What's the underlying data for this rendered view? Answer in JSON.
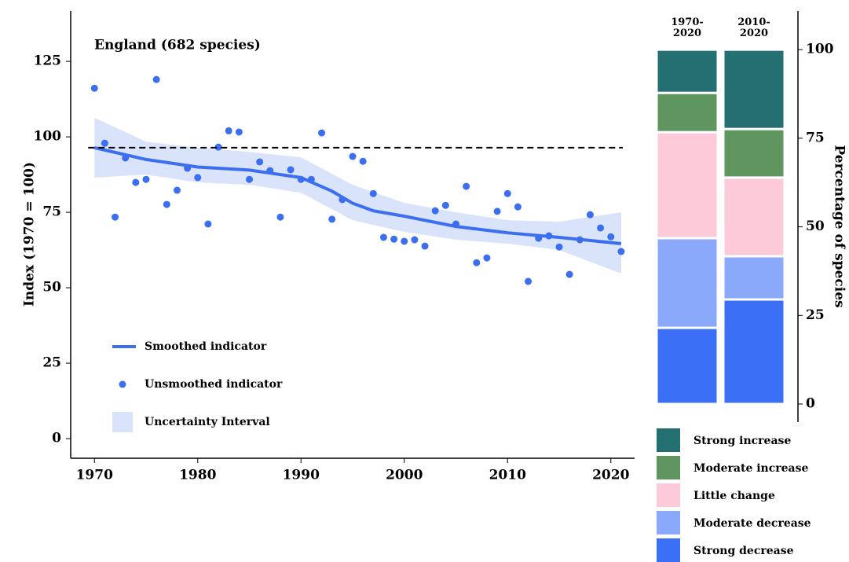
{
  "chart_data": [
    {
      "type": "line",
      "title": "England (682 species)",
      "ylabel": "Index (1970 = 100)",
      "xlim": [
        1967.7,
        2022.3
      ],
      "ylim": [
        -6.5,
        141.7
      ],
      "xticks": [
        1970,
        1980,
        1990,
        2000,
        2010,
        2020
      ],
      "yticks": [
        0,
        25,
        50,
        75,
        100,
        125
      ],
      "reference_line": 96.4,
      "series": [
        {
          "name": "Smoothed indicator",
          "kind": "line",
          "color": "#3b6ff0",
          "x": [
            1970,
            1975,
            1980,
            1985,
            1990,
            1993,
            1995,
            1997,
            2000,
            2005,
            2010,
            2015,
            2021
          ],
          "values": [
            96.4,
            92.5,
            90,
            89,
            86.5,
            82,
            78,
            75.5,
            73.7,
            70.3,
            68.2,
            66.7,
            64.6
          ]
        },
        {
          "name": "Unsmoothed indicator",
          "kind": "scatter",
          "color": "#3b6ff0",
          "x": [
            1970,
            1971,
            1972,
            1973,
            1974,
            1975,
            1976,
            1977,
            1978,
            1979,
            1980,
            1981,
            1982,
            1983,
            1984,
            1985,
            1986,
            1987,
            1988,
            1989,
            1990,
            1991,
            1992,
            1993,
            1994,
            1995,
            1996,
            1997,
            1998,
            1999,
            2000,
            2001,
            2002,
            2003,
            2004,
            2005,
            2006,
            2007,
            2008,
            2009,
            2010,
            2011,
            2012,
            2013,
            2014,
            2015,
            2016,
            2017,
            2018,
            2019,
            2020,
            2021
          ],
          "values": [
            116.1,
            97.9,
            73.4,
            93,
            84.9,
            85.9,
            119,
            77.6,
            82.3,
            89.6,
            86.5,
            71.1,
            96.6,
            102,
            101.6,
            85.9,
            91.7,
            88.8,
            73.4,
            89.1,
            85.9,
            85.9,
            101.3,
            72.7,
            79.2,
            93.5,
            91.9,
            81.2,
            66.7,
            66.1,
            65.4,
            65.9,
            63.8,
            75.5,
            77.3,
            71.1,
            83.6,
            58.3,
            59.9,
            75.3,
            81.2,
            76.8,
            52.1,
            66.4,
            67.2,
            63.5,
            54.4,
            65.9,
            74.2,
            69.8,
            66.9,
            62
          ]
        },
        {
          "name": "Uncertainty Interval",
          "kind": "band",
          "color": "#d9e3fa",
          "x": [
            1970,
            1975,
            1980,
            1985,
            1990,
            1995,
            2000,
            2005,
            2010,
            2015,
            2021
          ],
          "lower": [
            86.5,
            87.5,
            84.9,
            84.1,
            81.5,
            72.4,
            68.5,
            65.9,
            64.6,
            62.5,
            54.7
          ],
          "upper": [
            106.3,
            98.4,
            96.4,
            95,
            93.2,
            84.1,
            78.1,
            75,
            72.4,
            71.9,
            75
          ]
        }
      ]
    },
    {
      "type": "stacked_bar",
      "categories": [
        "1970-\n2020",
        "2010-\n2020"
      ],
      "ylabel": "Percentage of species",
      "y2lim": [
        -5.1,
        110.9
      ],
      "y2ticks": [
        0,
        25,
        50,
        75,
        100
      ],
      "series": [
        {
          "name": "Strong increase",
          "color": "#236f72",
          "axis": "y2",
          "values": [
            12.2,
            22.4
          ]
        },
        {
          "name": "Moderate increase",
          "color": "#5f9660",
          "axis": "y2",
          "values": [
            11.1,
            13.7
          ]
        },
        {
          "name": "Little change",
          "color": "#fccad8",
          "axis": "y2",
          "values": [
            29.9,
            22.2
          ]
        },
        {
          "name": "Moderate decrease",
          "color": "#8aa9fa",
          "axis": "y2",
          "values": [
            25.3,
            12.2
          ]
        },
        {
          "name": "Strong decrease",
          "color": "#3b6ff5",
          "axis": "y2",
          "values": [
            21.5,
            29.5
          ]
        }
      ]
    }
  ]
}
